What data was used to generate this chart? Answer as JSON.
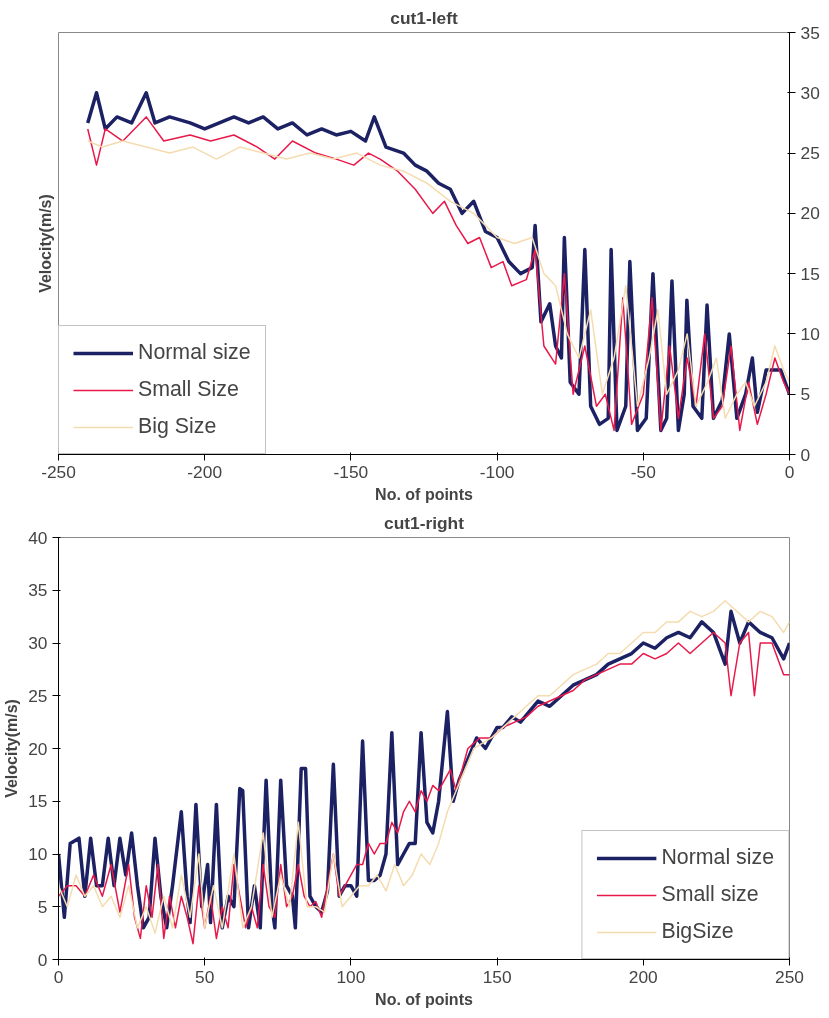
{
  "chart_data": [
    {
      "type": "line",
      "title": "cut1-left",
      "xlabel": "No. of points",
      "ylabel": "Velocity(m/s)",
      "xlim": [
        -250,
        0
      ],
      "xticks": [
        -250,
        -200,
        -150,
        -100,
        -50,
        0
      ],
      "ylim": [
        0,
        35
      ],
      "yticks": [
        0,
        5,
        10,
        15,
        20,
        25,
        30,
        35
      ],
      "grid": false,
      "legend": "bottom left",
      "series": [
        {
          "name": "Normal size",
          "color": "#1c2163",
          "x": [
            -240,
            -237,
            -234,
            -230,
            -225,
            -220,
            -217,
            -212,
            -205,
            -200,
            -195,
            -190,
            -185,
            -180,
            -175,
            -170,
            -165,
            -160,
            -155,
            -150,
            -145,
            -142,
            -138,
            -132,
            -128,
            -124,
            -120,
            -116,
            -112,
            -108,
            -104,
            -100,
            -96,
            -92,
            -88,
            -87,
            -85,
            -82,
            -80,
            -78,
            -77,
            -75,
            -72,
            -70,
            -68,
            -65,
            -62,
            -61,
            -59,
            -56,
            -54.6,
            -52,
            -49,
            -46.7,
            -44,
            -42,
            -40.2,
            -38,
            -36,
            -35.1,
            -33,
            -30,
            -28.2,
            -26,
            -23,
            -20.6,
            -18,
            -15,
            -12.7,
            -11,
            -8,
            -5,
            -3,
            0
          ],
          "values": [
            27.5,
            30,
            27,
            28,
            27.5,
            30,
            27.5,
            28,
            27.5,
            27,
            27.5,
            28,
            27.5,
            28,
            27,
            27.5,
            26.5,
            27,
            26.5,
            26.8,
            26,
            28,
            25.5,
            25,
            24,
            23.5,
            22.5,
            22,
            20,
            21,
            18.5,
            18,
            16,
            15,
            15.5,
            19,
            11,
            12.5,
            9,
            8,
            18,
            6,
            5,
            17,
            4,
            2.5,
            3,
            17,
            2,
            4,
            16,
            2,
            3,
            15,
            2,
            3,
            14.4,
            2,
            5,
            12.8,
            4,
            3,
            12.4,
            3,
            4.5,
            10,
            3,
            5,
            8,
            3.5,
            7,
            7,
            7,
            5
          ]
        },
        {
          "name": "Small Size",
          "color": "#e8194a",
          "x": [
            -240,
            -237,
            -234,
            -228,
            -220,
            -214,
            -205,
            -198,
            -190,
            -182,
            -176,
            -170,
            -162,
            -155,
            -149,
            -144,
            -140,
            -134,
            -128,
            -122,
            -118,
            -114,
            -110,
            -106,
            -102,
            -98,
            -95,
            -90,
            -87,
            -84,
            -80,
            -77,
            -74,
            -70,
            -66,
            -63,
            -60,
            -57,
            -54,
            -50,
            -47,
            -44,
            -41,
            -38,
            -35,
            -32,
            -29,
            -26,
            -23,
            -20,
            -17,
            -14,
            -11,
            -8,
            -5,
            -2,
            0
          ],
          "values": [
            27,
            24,
            27,
            26,
            28,
            26,
            26.5,
            26,
            26.5,
            25.5,
            24.5,
            26,
            25,
            24.5,
            24,
            25,
            24.5,
            23.5,
            22,
            20,
            21,
            19,
            17.5,
            18,
            15.5,
            16,
            14,
            14.5,
            17,
            9,
            7.5,
            15,
            5,
            9,
            4,
            5,
            2,
            13,
            2.5,
            5,
            13,
            2,
            9,
            3,
            8,
            4,
            10,
            3,
            4,
            9,
            2,
            6,
            2.5,
            5,
            8,
            6,
            5
          ]
        },
        {
          "name": "Big Size",
          "color": "#f5dcb0",
          "x": [
            -240,
            -235,
            -228,
            -220,
            -212,
            -204,
            -196,
            -188,
            -180,
            -172,
            -164,
            -156,
            -148,
            -140,
            -132,
            -124,
            -116,
            -108,
            -100,
            -94,
            -88,
            -84,
            -80,
            -76,
            -72,
            -68,
            -64,
            -60,
            -56,
            -52,
            -48,
            -45,
            -42,
            -38,
            -35,
            -32,
            -28,
            -25,
            -22,
            -18,
            -15,
            -12,
            -8,
            -5,
            -2,
            0
          ],
          "values": [
            26,
            25.5,
            26,
            25.5,
            25,
            25.5,
            24.5,
            25.5,
            25,
            24.5,
            25,
            24.5,
            25,
            24,
            23.5,
            22.5,
            21,
            20,
            18,
            17.5,
            18,
            15,
            14,
            10,
            8,
            12,
            5,
            8,
            14,
            4,
            8,
            12,
            5,
            7,
            10,
            4,
            6,
            8,
            3,
            5,
            6,
            4,
            6,
            9,
            7,
            6
          ]
        }
      ]
    },
    {
      "type": "line",
      "title": "cut1-right",
      "xlabel": "No. of points",
      "ylabel": "Velocity(m/s)",
      "xlim": [
        0,
        250
      ],
      "xticks": [
        0,
        50,
        100,
        150,
        200,
        250
      ],
      "ylim": [
        0,
        40
      ],
      "yticks": [
        0,
        5,
        10,
        15,
        20,
        25,
        30,
        35,
        40
      ],
      "grid": false,
      "legend": "bottom right",
      "series": [
        {
          "name": "Normal size",
          "color": "#1c2163",
          "x": [
            0,
            2,
            4,
            7,
            9,
            11,
            13,
            15,
            17,
            19,
            21,
            23,
            25,
            27,
            29,
            31,
            33,
            35,
            37,
            39,
            42,
            44,
            45,
            47,
            49,
            51,
            52,
            54,
            56,
            58,
            60,
            62,
            63,
            65,
            67,
            69,
            71,
            73,
            74,
            76,
            78,
            80,
            81,
            83,
            84.5,
            86,
            88,
            90,
            92,
            94,
            96,
            98,
            100,
            102,
            104,
            106,
            108,
            110,
            112,
            114,
            116,
            118,
            120,
            122,
            124,
            126,
            128,
            130,
            133,
            135,
            137,
            140,
            143,
            146,
            150,
            152,
            155,
            158,
            161,
            164,
            168,
            172,
            176,
            180,
            184,
            188,
            192,
            196,
            200,
            204,
            208,
            212,
            216,
            220,
            224,
            228,
            230,
            233,
            236,
            240,
            244,
            248,
            250
          ],
          "values": [
            10,
            4,
            11,
            11.5,
            6,
            11.5,
            7,
            7,
            11.5,
            7,
            11.5,
            8,
            12,
            7,
            3,
            4,
            11.5,
            6,
            3,
            7,
            14,
            6,
            3.5,
            14.7,
            5,
            9,
            3.5,
            14.7,
            3,
            6,
            5,
            16.2,
            16,
            3,
            7,
            3,
            17,
            5,
            3,
            17,
            7,
            6,
            3,
            18.1,
            18.1,
            6,
            5,
            4.5,
            6.5,
            18.5,
            6,
            7,
            7,
            6,
            20.7,
            7.5,
            7.5,
            8,
            10,
            21.5,
            9,
            10,
            11,
            11,
            21.5,
            13,
            12,
            15,
            23.5,
            15,
            17,
            19,
            21,
            20,
            22,
            22,
            23,
            22.5,
            23.5,
            24.5,
            24,
            25,
            26,
            26.5,
            27,
            28,
            28.5,
            29,
            30,
            29.5,
            30.5,
            31,
            30.5,
            32,
            31,
            28,
            33,
            30,
            32,
            31,
            30.5,
            28.5,
            30
          ]
        },
        {
          "name": "Small size",
          "color": "#e8194a",
          "x": [
            0,
            3,
            6,
            9,
            12,
            15,
            18,
            21,
            24,
            26,
            28,
            30,
            32,
            34,
            36,
            38,
            40,
            42,
            44,
            46,
            48,
            50,
            52,
            54,
            56,
            58,
            60,
            62,
            64,
            66,
            68,
            70,
            72,
            74,
            76,
            78,
            80,
            82,
            84,
            86,
            88,
            90,
            92,
            94,
            96,
            98,
            100,
            102,
            104,
            106,
            108,
            110,
            112,
            114,
            116,
            118,
            120,
            122,
            124,
            126,
            128,
            130,
            132,
            134,
            136,
            138,
            140,
            144,
            148,
            152,
            156,
            160,
            164,
            168,
            172,
            176,
            180,
            184,
            188,
            192,
            196,
            200,
            204,
            208,
            212,
            216,
            220,
            224,
            228,
            230,
            233,
            236,
            238,
            240,
            244,
            248,
            250
          ],
          "values": [
            6,
            7,
            7,
            6,
            8,
            6,
            9,
            4.5,
            9,
            4,
            2,
            7,
            4,
            9,
            2,
            6,
            3,
            6,
            4,
            1.5,
            7,
            3,
            6,
            2,
            5,
            3,
            9,
            6,
            3,
            5,
            3,
            9,
            5,
            4,
            9,
            5,
            6,
            9,
            6,
            5,
            5.5,
            4,
            7,
            10,
            6,
            7,
            8,
            9,
            9,
            11,
            10,
            11,
            11,
            13,
            12,
            14,
            15,
            14,
            16,
            15,
            16.5,
            16,
            17,
            18,
            16,
            18,
            20,
            21,
            21,
            22,
            22.5,
            23,
            24,
            24.5,
            25,
            25.5,
            26.5,
            27,
            27.5,
            28,
            28,
            29,
            28.5,
            29,
            30,
            29,
            30,
            31,
            30,
            25,
            30,
            31,
            25,
            30,
            30,
            27,
            27
          ]
        },
        {
          "name": "BigSize",
          "color": "#f5dcb0",
          "x": [
            0,
            3,
            6,
            9,
            12,
            15,
            18,
            21,
            24,
            27,
            30,
            33,
            36,
            39,
            42,
            45,
            48,
            50,
            53,
            56,
            60,
            63,
            66,
            70,
            73,
            76,
            79,
            82,
            85,
            88,
            91,
            94,
            97,
            100,
            103,
            106,
            109,
            112,
            115,
            118,
            121,
            124,
            127,
            130,
            133,
            136,
            139,
            142,
            145,
            148,
            152,
            156,
            160,
            164,
            168,
            172,
            176,
            180,
            184,
            188,
            192,
            196,
            200,
            204,
            208,
            212,
            216,
            220,
            224,
            228,
            232,
            236,
            240,
            244,
            248,
            250
          ],
          "values": [
            7,
            5,
            8,
            6,
            7,
            5,
            6,
            4,
            7,
            3,
            5,
            2.5,
            6,
            3,
            8,
            4,
            10,
            3,
            7,
            3,
            10,
            3,
            5,
            12,
            4,
            8,
            5,
            13,
            5,
            5,
            4.5,
            10,
            5,
            6,
            7,
            7,
            8,
            6.5,
            9,
            7,
            8,
            10,
            9,
            11,
            14,
            16,
            18,
            20,
            20.5,
            21,
            22,
            23,
            24,
            25,
            25,
            26,
            27,
            27.5,
            28,
            29,
            29,
            30,
            31,
            31,
            32,
            32,
            33,
            32.5,
            33,
            34,
            33,
            32,
            33,
            32.5,
            31,
            32
          ]
        }
      ]
    }
  ]
}
